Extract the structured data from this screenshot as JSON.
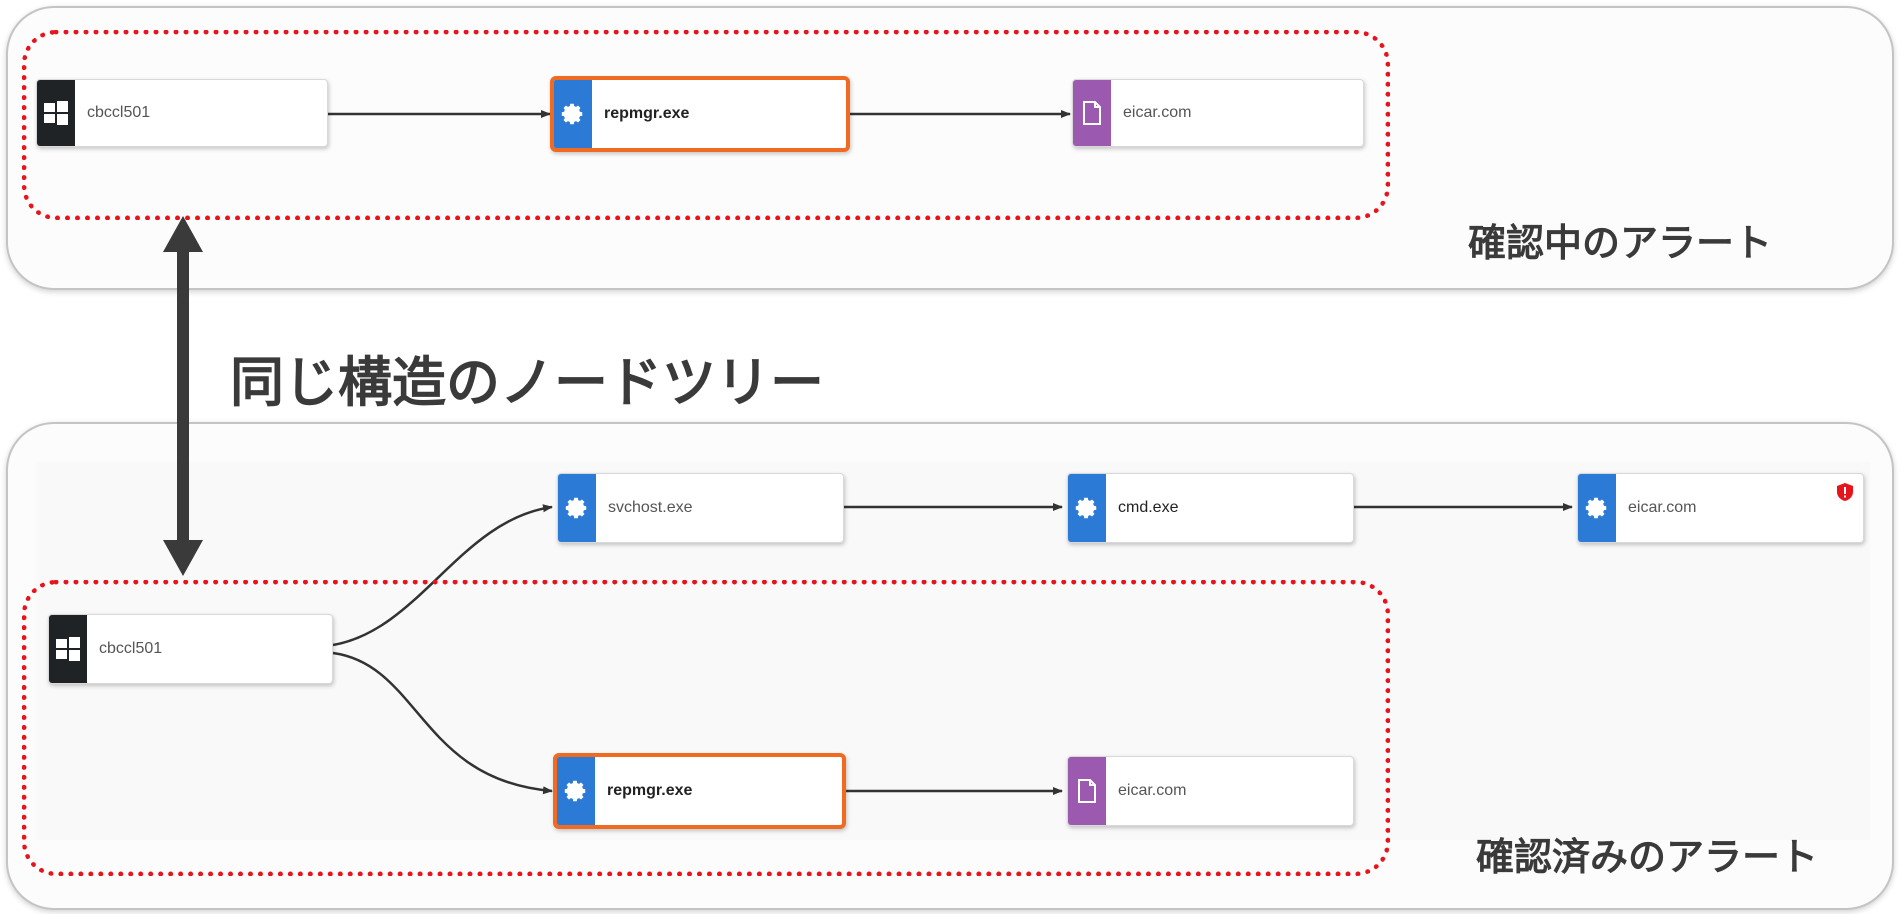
{
  "top_panel": {
    "label": "確認中のアラート",
    "nodes": [
      {
        "id": "t1",
        "label": "cbccl501",
        "icon": "windows-icon",
        "type": "host"
      },
      {
        "id": "t2",
        "label": "repmgr.exe",
        "icon": "gear-icon",
        "type": "process",
        "highlight": true
      },
      {
        "id": "t3",
        "label": "eicar.com",
        "icon": "file-icon",
        "type": "file"
      }
    ]
  },
  "center_label": "同じ構造のノードツリー",
  "bottom_panel": {
    "label": "確認済みのアラート",
    "nodes": [
      {
        "id": "b1",
        "label": "cbccl501",
        "icon": "windows-icon",
        "type": "host"
      },
      {
        "id": "b2",
        "label": "svchost.exe",
        "icon": "gear-icon",
        "type": "process"
      },
      {
        "id": "b3",
        "label": "cmd.exe",
        "icon": "gear-icon",
        "type": "process"
      },
      {
        "id": "b4",
        "label": "eicar.com",
        "icon": "gear-icon",
        "type": "process",
        "alert": true
      },
      {
        "id": "b5",
        "label": "repmgr.exe",
        "icon": "gear-icon",
        "type": "process",
        "highlight": true
      },
      {
        "id": "b6",
        "label": "eicar.com",
        "icon": "file-icon",
        "type": "file"
      }
    ]
  },
  "colors": {
    "highlight_border": "#f06a22",
    "dashed_outline": "#e8141c",
    "host_icon_bg": "#1f2326",
    "process_icon_bg": "#2b7ad6",
    "file_icon_bg": "#9b59b0",
    "alert_badge": "#e8141c"
  }
}
